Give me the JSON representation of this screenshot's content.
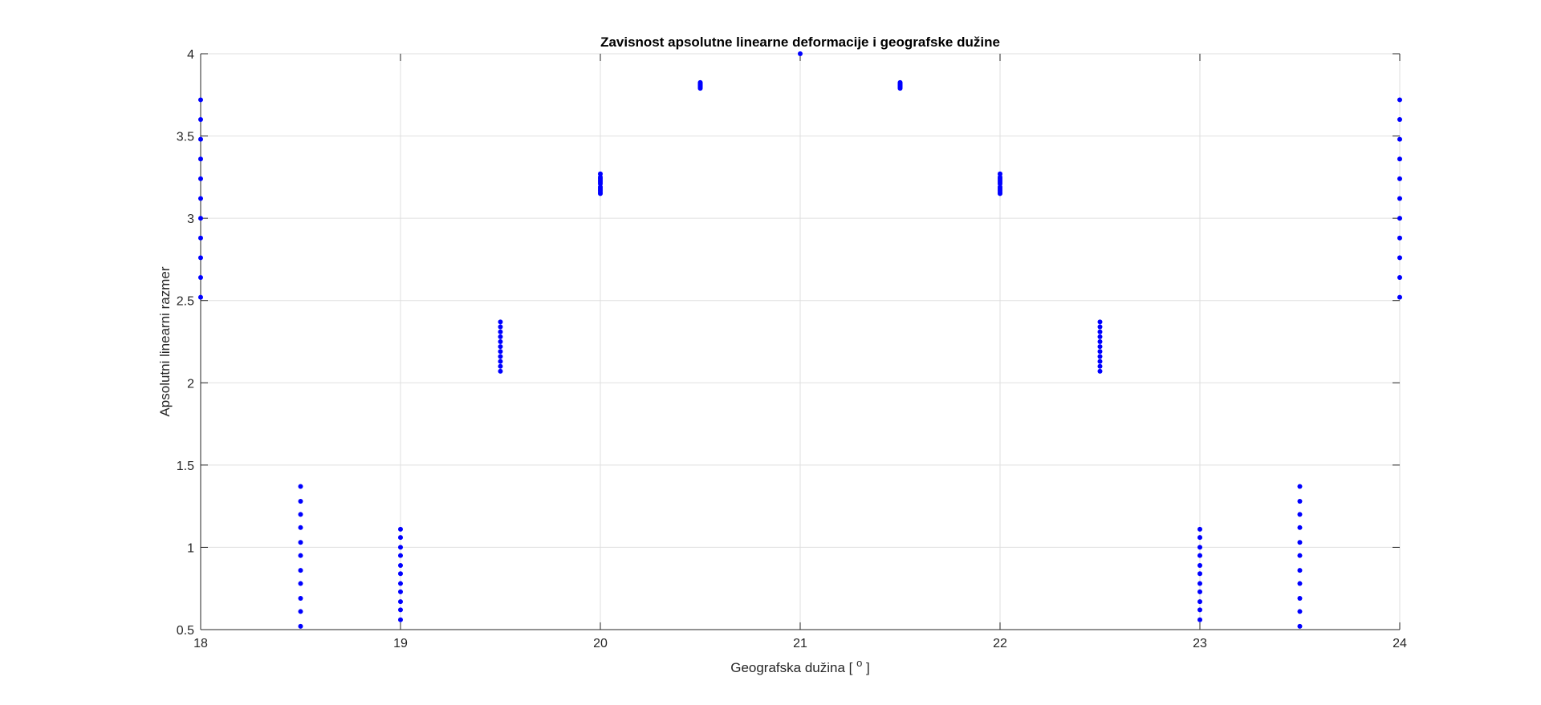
{
  "chart_data": {
    "type": "scatter",
    "title": "Zavisnost apsolutne linearne deformacije i geografske dužine",
    "xlabel_main": "Geografska dužina [ ",
    "xlabel_sup": "o",
    "xlabel_end": " ]",
    "ylabel": "Apsolutni linearni razmer",
    "xlim": [
      18,
      24
    ],
    "ylim": [
      0.5,
      4
    ],
    "xticks": [
      18,
      19,
      20,
      21,
      22,
      23,
      24
    ],
    "xtick_labels": [
      "18",
      "19",
      "20",
      "21",
      "22",
      "23",
      "24"
    ],
    "yticks": [
      0.5,
      1,
      1.5,
      2,
      2.5,
      3,
      3.5,
      4
    ],
    "ytick_labels": [
      "0.5",
      "1",
      "1.5",
      "2",
      "2.5",
      "3",
      "3.5",
      "4"
    ],
    "grid": true,
    "marker_color": "#0000ff",
    "series": [
      {
        "x": [
          18,
          18,
          18,
          18,
          18,
          18,
          18,
          18,
          18,
          18,
          18,
          18.5,
          18.5,
          18.5,
          18.5,
          18.5,
          18.5,
          18.5,
          18.5,
          18.5,
          18.5,
          18.5,
          19,
          19,
          19,
          19,
          19,
          19,
          19,
          19,
          19,
          19,
          19,
          19.5,
          19.5,
          19.5,
          19.5,
          19.5,
          19.5,
          19.5,
          19.5,
          19.5,
          19.5,
          19.5,
          20,
          20,
          20,
          20,
          20,
          20,
          20,
          20,
          20,
          20,
          20,
          20.5,
          20.5,
          20.5,
          20.5,
          20.5,
          20.5,
          20.5,
          20.5,
          20.5,
          20.5,
          20.5,
          21,
          21.5,
          21.5,
          21.5,
          21.5,
          21.5,
          21.5,
          21.5,
          21.5,
          21.5,
          21.5,
          21.5,
          22,
          22,
          22,
          22,
          22,
          22,
          22,
          22,
          22,
          22,
          22,
          22.5,
          22.5,
          22.5,
          22.5,
          22.5,
          22.5,
          22.5,
          22.5,
          22.5,
          22.5,
          22.5,
          23,
          23,
          23,
          23,
          23,
          23,
          23,
          23,
          23,
          23,
          23,
          23.5,
          23.5,
          23.5,
          23.5,
          23.5,
          23.5,
          23.5,
          23.5,
          23.5,
          23.5,
          23.5,
          24,
          24,
          24,
          24,
          24,
          24,
          24,
          24,
          24,
          24,
          24
        ],
        "y": [
          2.52,
          2.64,
          2.76,
          2.88,
          3.0,
          3.12,
          3.24,
          3.36,
          3.48,
          3.6,
          3.72,
          0.52,
          0.61,
          0.69,
          0.78,
          0.86,
          0.95,
          1.03,
          1.12,
          1.2,
          1.28,
          1.37,
          0.56,
          0.62,
          0.67,
          0.73,
          0.78,
          0.84,
          0.89,
          0.95,
          1.0,
          1.06,
          1.11,
          2.07,
          2.1,
          2.13,
          2.16,
          2.19,
          2.22,
          2.25,
          2.28,
          2.31,
          2.34,
          2.37,
          3.15,
          3.16,
          3.17,
          3.18,
          3.19,
          3.21,
          3.22,
          3.23,
          3.24,
          3.25,
          3.27,
          3.79,
          3.795,
          3.8,
          3.8,
          3.805,
          3.81,
          3.81,
          3.815,
          3.82,
          3.82,
          3.825,
          4.0,
          3.79,
          3.795,
          3.8,
          3.8,
          3.805,
          3.81,
          3.81,
          3.815,
          3.82,
          3.82,
          3.825,
          3.15,
          3.16,
          3.17,
          3.18,
          3.19,
          3.21,
          3.22,
          3.23,
          3.24,
          3.25,
          3.27,
          2.07,
          2.1,
          2.13,
          2.16,
          2.19,
          2.22,
          2.25,
          2.28,
          2.31,
          2.34,
          2.37,
          0.56,
          0.62,
          0.67,
          0.73,
          0.78,
          0.84,
          0.89,
          0.95,
          1.0,
          1.06,
          1.11,
          0.52,
          0.61,
          0.69,
          0.78,
          0.86,
          0.95,
          1.03,
          1.12,
          1.2,
          1.28,
          1.37,
          2.52,
          2.64,
          2.76,
          2.88,
          3.0,
          3.12,
          3.24,
          3.36,
          3.48,
          3.6,
          3.72
        ]
      }
    ]
  }
}
